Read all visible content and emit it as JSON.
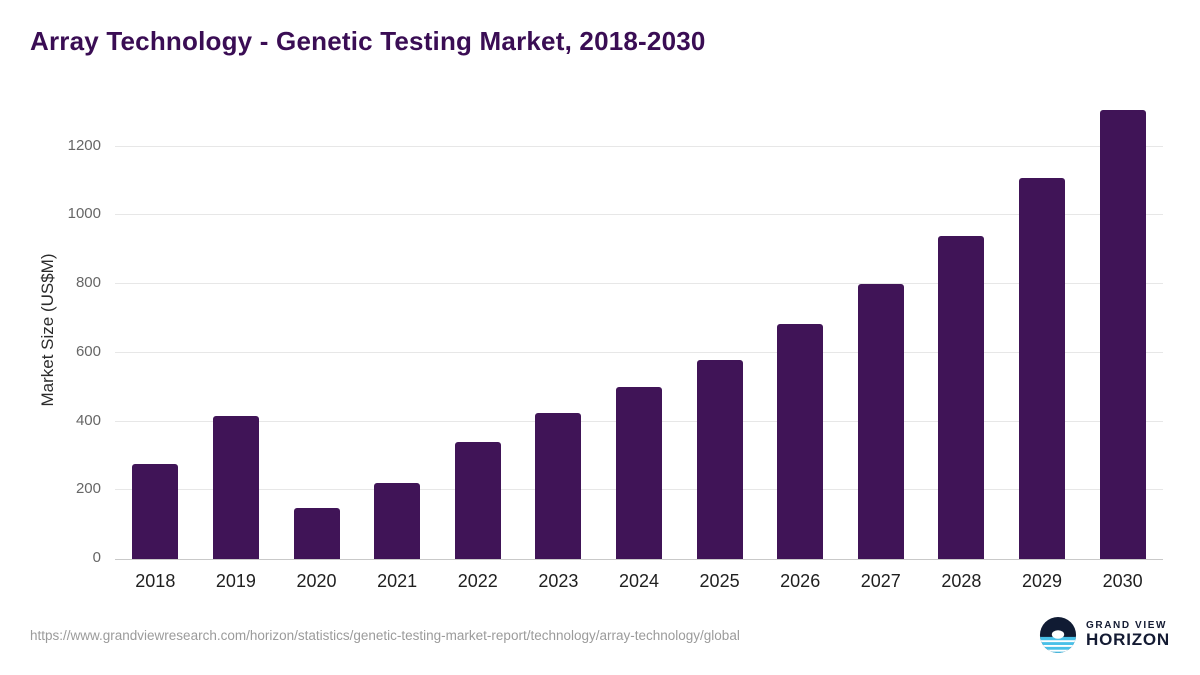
{
  "page": {
    "title": "Array Technology - Genetic Testing Market, 2018-2030",
    "source_url": "https://www.grandviewresearch.com/horizon/statistics/genetic-testing-market-report/technology/array-technology/global",
    "logo": {
      "line1": "GRAND VIEW",
      "line2": "HORIZON"
    }
  },
  "chart_data": {
    "type": "bar",
    "title": "Array Technology - Genetic Testing Market, 2018-2030",
    "categories": [
      "2018",
      "2019",
      "2020",
      "2021",
      "2022",
      "2023",
      "2024",
      "2025",
      "2026",
      "2027",
      "2028",
      "2029",
      "2030"
    ],
    "values": [
      275,
      415,
      148,
      220,
      340,
      425,
      500,
      580,
      683,
      800,
      940,
      1110,
      1305
    ],
    "xlabel": "",
    "ylabel": "Market Size (US$M)",
    "ylim": [
      0,
      1350
    ],
    "yticks": [
      0,
      200,
      400,
      600,
      800,
      1000,
      1200
    ],
    "grid": true,
    "legend": false,
    "bar_color": "#401457",
    "accent_color": "#3a0d54"
  }
}
